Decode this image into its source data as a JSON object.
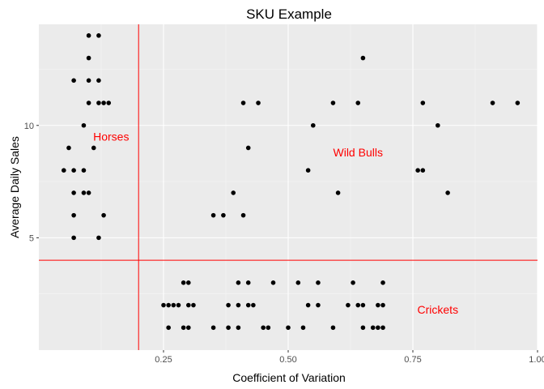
{
  "chart_data": {
    "type": "scatter",
    "title": "SKU Example",
    "xlabel": "Coefficient of Variation",
    "ylabel": "Average Daily Sales",
    "xlim": [
      0.0,
      1.0
    ],
    "ylim": [
      0.0,
      14.5
    ],
    "x_ticks": [
      0.25,
      0.5,
      0.75,
      1.0
    ],
    "x_tick_labels": [
      "0.25",
      "0.50",
      "0.75",
      "1.00"
    ],
    "y_ticks": [
      5,
      10
    ],
    "y_tick_labels": [
      "5",
      "10"
    ],
    "grid": true,
    "panel_color": "#ebebeb",
    "point_color": "#000000",
    "reference_lines": [
      {
        "orientation": "vertical",
        "value": 0.2,
        "color": "#ff0000"
      },
      {
        "orientation": "horizontal",
        "value": 4,
        "color": "#ff0000"
      }
    ],
    "annotations": [
      {
        "text": "Horses",
        "x": 0.145,
        "y": 9.5,
        "color": "#ff0000"
      },
      {
        "text": "Wild Bulls",
        "x": 0.64,
        "y": 8.8,
        "color": "#ff0000"
      },
      {
        "text": "Crickets",
        "x": 0.8,
        "y": 1.8,
        "color": "#ff0000"
      }
    ],
    "points": [
      {
        "x": 0.1,
        "y": 14
      },
      {
        "x": 0.12,
        "y": 14
      },
      {
        "x": 0.1,
        "y": 13
      },
      {
        "x": 0.07,
        "y": 12
      },
      {
        "x": 0.1,
        "y": 12
      },
      {
        "x": 0.12,
        "y": 12
      },
      {
        "x": 0.1,
        "y": 11
      },
      {
        "x": 0.12,
        "y": 11
      },
      {
        "x": 0.13,
        "y": 11
      },
      {
        "x": 0.14,
        "y": 11
      },
      {
        "x": 0.09,
        "y": 10
      },
      {
        "x": 0.06,
        "y": 9
      },
      {
        "x": 0.11,
        "y": 9
      },
      {
        "x": 0.05,
        "y": 8
      },
      {
        "x": 0.07,
        "y": 8
      },
      {
        "x": 0.09,
        "y": 8
      },
      {
        "x": 0.07,
        "y": 7
      },
      {
        "x": 0.09,
        "y": 7
      },
      {
        "x": 0.1,
        "y": 7
      },
      {
        "x": 0.07,
        "y": 6
      },
      {
        "x": 0.13,
        "y": 6
      },
      {
        "x": 0.07,
        "y": 5
      },
      {
        "x": 0.12,
        "y": 5
      },
      {
        "x": 0.65,
        "y": 13
      },
      {
        "x": 0.41,
        "y": 11
      },
      {
        "x": 0.44,
        "y": 11
      },
      {
        "x": 0.59,
        "y": 11
      },
      {
        "x": 0.64,
        "y": 11
      },
      {
        "x": 0.77,
        "y": 11
      },
      {
        "x": 0.91,
        "y": 11
      },
      {
        "x": 0.96,
        "y": 11
      },
      {
        "x": 0.55,
        "y": 10
      },
      {
        "x": 0.8,
        "y": 10
      },
      {
        "x": 0.42,
        "y": 9
      },
      {
        "x": 0.54,
        "y": 8
      },
      {
        "x": 0.76,
        "y": 8
      },
      {
        "x": 0.77,
        "y": 8
      },
      {
        "x": 0.39,
        "y": 7
      },
      {
        "x": 0.6,
        "y": 7
      },
      {
        "x": 0.82,
        "y": 7
      },
      {
        "x": 0.35,
        "y": 6
      },
      {
        "x": 0.37,
        "y": 6
      },
      {
        "x": 0.41,
        "y": 6
      },
      {
        "x": 0.29,
        "y": 3
      },
      {
        "x": 0.3,
        "y": 3
      },
      {
        "x": 0.4,
        "y": 3
      },
      {
        "x": 0.42,
        "y": 3
      },
      {
        "x": 0.47,
        "y": 3
      },
      {
        "x": 0.52,
        "y": 3
      },
      {
        "x": 0.56,
        "y": 3
      },
      {
        "x": 0.63,
        "y": 3
      },
      {
        "x": 0.69,
        "y": 3
      },
      {
        "x": 0.25,
        "y": 2
      },
      {
        "x": 0.26,
        "y": 2
      },
      {
        "x": 0.27,
        "y": 2
      },
      {
        "x": 0.28,
        "y": 2
      },
      {
        "x": 0.3,
        "y": 2
      },
      {
        "x": 0.31,
        "y": 2
      },
      {
        "x": 0.38,
        "y": 2
      },
      {
        "x": 0.4,
        "y": 2
      },
      {
        "x": 0.42,
        "y": 2
      },
      {
        "x": 0.43,
        "y": 2
      },
      {
        "x": 0.54,
        "y": 2
      },
      {
        "x": 0.56,
        "y": 2
      },
      {
        "x": 0.62,
        "y": 2
      },
      {
        "x": 0.64,
        "y": 2
      },
      {
        "x": 0.65,
        "y": 2
      },
      {
        "x": 0.68,
        "y": 2
      },
      {
        "x": 0.69,
        "y": 2
      },
      {
        "x": 0.26,
        "y": 1
      },
      {
        "x": 0.29,
        "y": 1
      },
      {
        "x": 0.3,
        "y": 1
      },
      {
        "x": 0.35,
        "y": 1
      },
      {
        "x": 0.38,
        "y": 1
      },
      {
        "x": 0.4,
        "y": 1
      },
      {
        "x": 0.45,
        "y": 1
      },
      {
        "x": 0.46,
        "y": 1
      },
      {
        "x": 0.5,
        "y": 1
      },
      {
        "x": 0.53,
        "y": 1
      },
      {
        "x": 0.59,
        "y": 1
      },
      {
        "x": 0.65,
        "y": 1
      },
      {
        "x": 0.67,
        "y": 1
      },
      {
        "x": 0.68,
        "y": 1
      },
      {
        "x": 0.69,
        "y": 1
      }
    ]
  }
}
